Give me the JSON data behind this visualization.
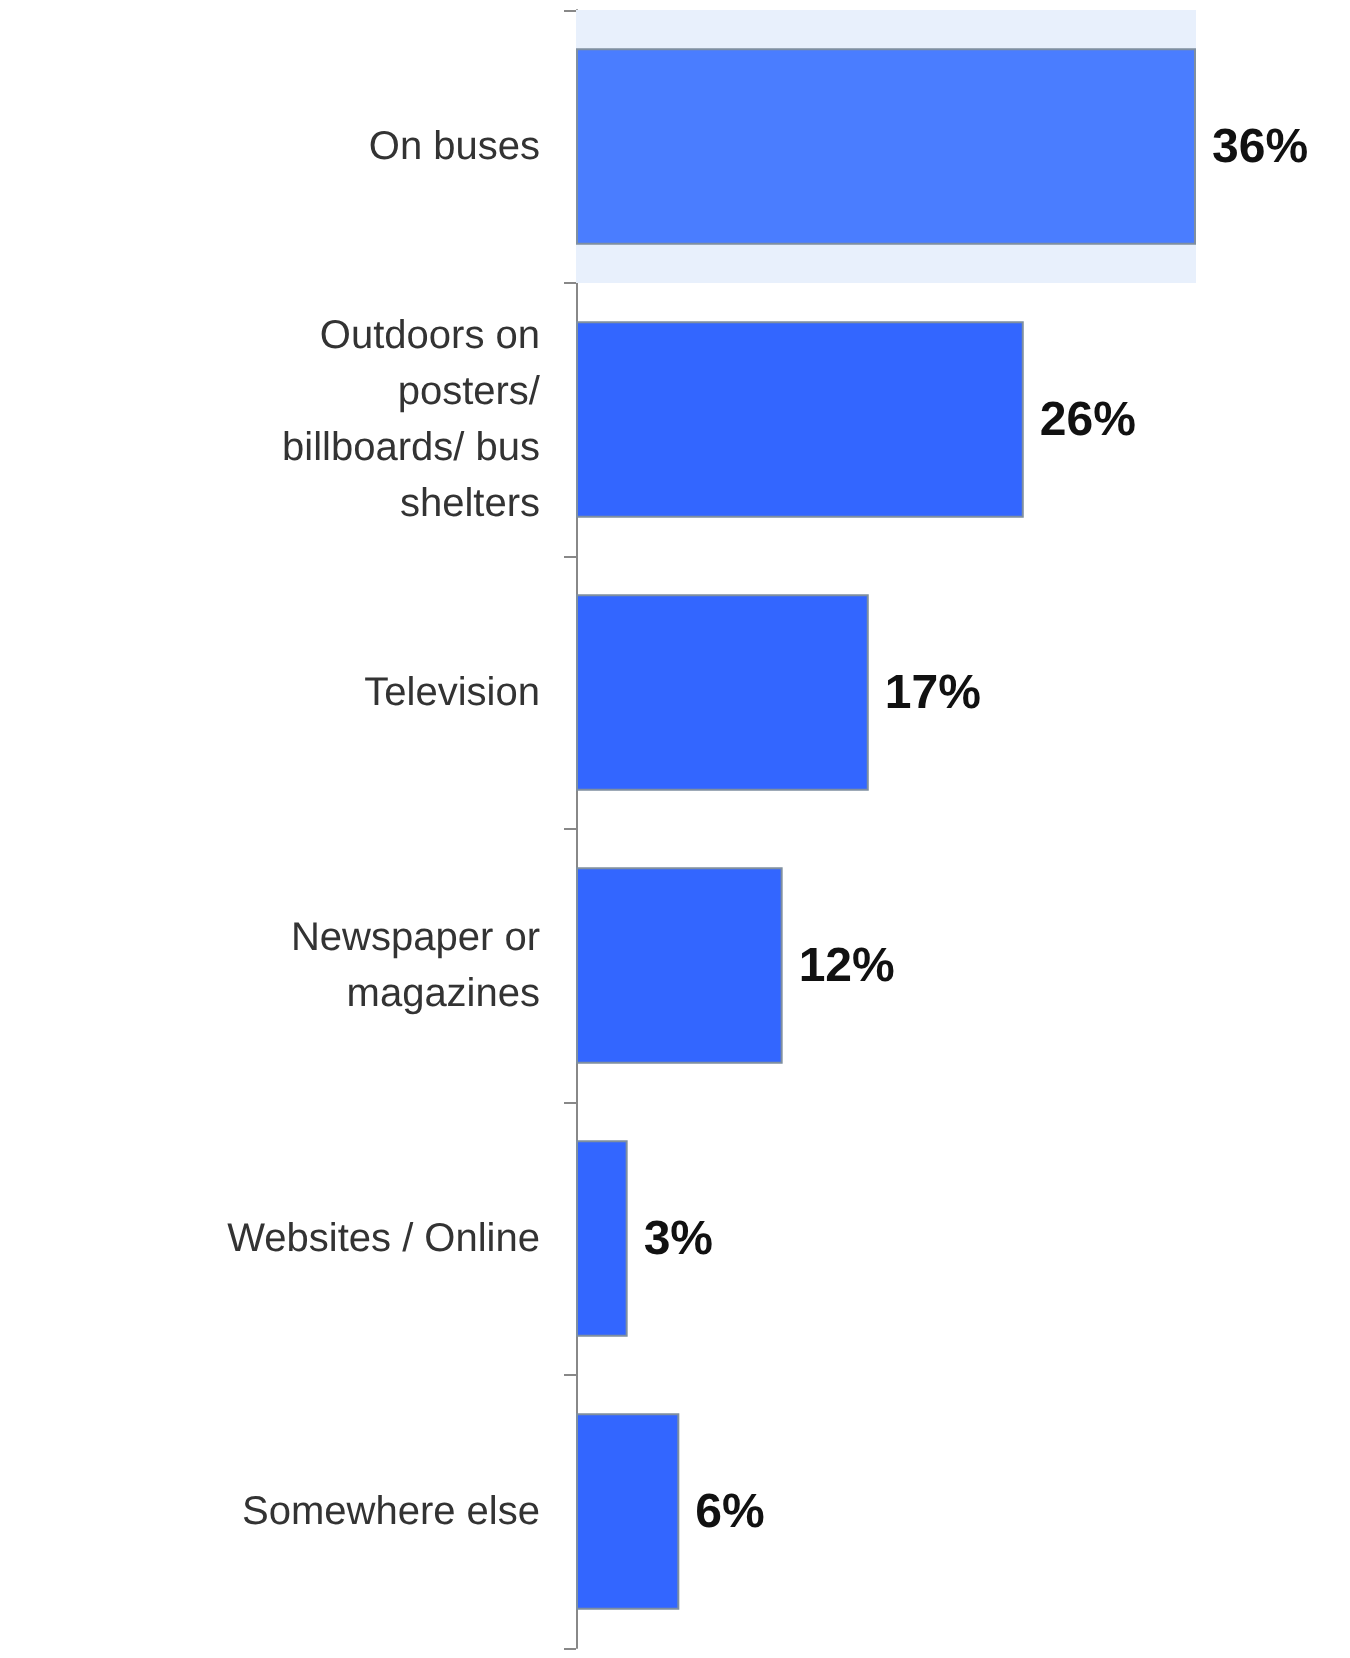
{
  "chart_data": {
    "type": "bar",
    "orientation": "horizontal",
    "categories": [
      "On buses",
      "Outdoors on posters/ billboards/ bus shelters",
      "Television",
      "Newspaper or magazines",
      "Websites / Online",
      "Somewhere else"
    ],
    "values": [
      36,
      26,
      17,
      12,
      3,
      6
    ],
    "colors": [
      "#4a7dff",
      "#3366ff",
      "#3366ff",
      "#3366ff",
      "#3366ff",
      "#3366ff"
    ],
    "value_labels": [
      "36%",
      "26%",
      "17%",
      "12%",
      "3%",
      "6%"
    ],
    "bands": [
      {
        "axis": "y",
        "from": "On buses",
        "to": "On buses",
        "color": "#e8f0fc"
      }
    ],
    "grid": false
  }
}
